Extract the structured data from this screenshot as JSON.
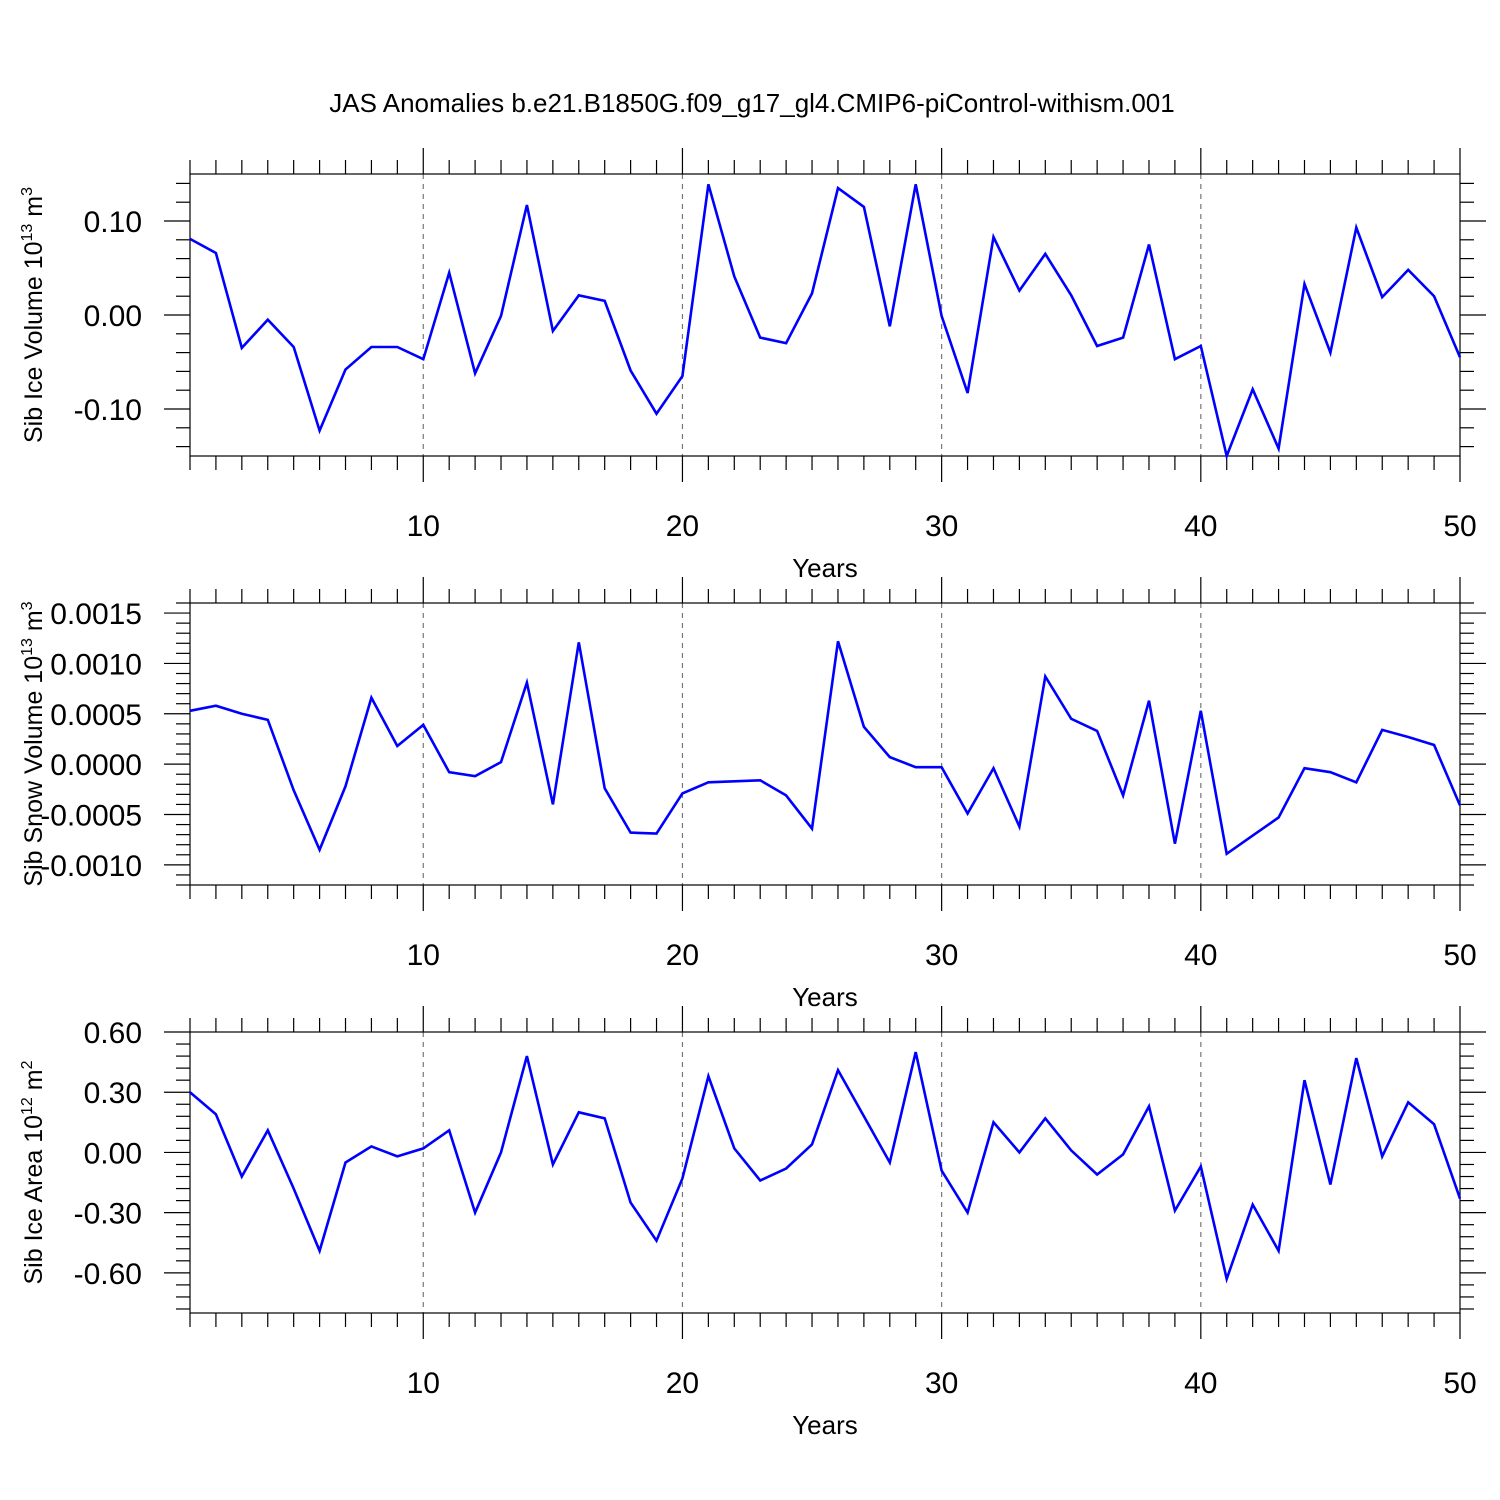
{
  "title": "JAS Anomalies b.e21.B1850G.f09_g17_gl4.CMIP6-piControl-withism.001",
  "colors": {
    "series": "#0000ff",
    "grid": "#777777",
    "frame": "#000000"
  },
  "chart_data": [
    {
      "type": "line",
      "ylabel": "Sib Ice Volume 10",
      "ylabel_sup": "13",
      "ylabel_unit": " m",
      "ylabel_unit_sup": "3",
      "xlabel": "Years",
      "xlim": [
        1,
        50
      ],
      "ylim": [
        -0.15,
        0.15
      ],
      "xticks": [
        10,
        20,
        30,
        40,
        50
      ],
      "xtick_labels": [
        "10",
        "20",
        "30",
        "40",
        "50"
      ],
      "yticks": [
        -0.1,
        0.0,
        0.1
      ],
      "ytick_labels": [
        "-0.10",
        "0.00",
        "0.10"
      ],
      "grid": "x-dashed",
      "x": [
        1,
        2,
        3,
        4,
        5,
        6,
        7,
        8,
        9,
        10,
        11,
        12,
        13,
        14,
        15,
        16,
        17,
        18,
        19,
        20,
        21,
        22,
        23,
        24,
        25,
        26,
        27,
        28,
        29,
        30,
        31,
        32,
        33,
        34,
        35,
        36,
        37,
        38,
        39,
        40,
        41,
        42,
        43,
        44,
        45,
        46,
        47,
        48,
        49,
        50
      ],
      "series": [
        {
          "values": [
            0.081,
            0.066,
            -0.035,
            -0.005,
            -0.034,
            -0.123,
            -0.058,
            -0.034,
            -0.034,
            -0.047,
            0.045,
            -0.062,
            -0.001,
            0.117,
            -0.017,
            0.021,
            0.015,
            -0.059,
            -0.105,
            -0.065,
            0.139,
            0.041,
            -0.024,
            -0.03,
            0.023,
            0.135,
            0.115,
            -0.012,
            0.139,
            -0.001,
            -0.083,
            0.083,
            0.026,
            0.065,
            0.021,
            -0.033,
            -0.024,
            0.075,
            -0.047,
            -0.033,
            -0.15,
            -0.079,
            -0.142,
            0.033,
            -0.04,
            0.093,
            0.019,
            0.048,
            0.02,
            -0.045
          ]
        }
      ]
    },
    {
      "type": "line",
      "ylabel": "Sib Snow Volume 10",
      "ylabel_sup": "13",
      "ylabel_unit": " m",
      "ylabel_unit_sup": "3",
      "xlabel": "Years",
      "xlim": [
        1,
        50
      ],
      "ylim": [
        -0.0012,
        0.0016
      ],
      "xticks": [
        10,
        20,
        30,
        40,
        50
      ],
      "xtick_labels": [
        "10",
        "20",
        "30",
        "40",
        "50"
      ],
      "yticks": [
        -0.001,
        -0.0005,
        0.0,
        0.0005,
        0.001,
        0.0015
      ],
      "ytick_labels": [
        "-0.0010",
        "-0.0005",
        "0.0000",
        "0.0005",
        "0.0010",
        "0.0015"
      ],
      "grid": "x-dashed",
      "x": [
        1,
        2,
        3,
        4,
        5,
        6,
        7,
        8,
        9,
        10,
        11,
        12,
        13,
        14,
        15,
        16,
        17,
        18,
        19,
        20,
        21,
        22,
        23,
        24,
        25,
        26,
        27,
        28,
        29,
        30,
        31,
        32,
        33,
        34,
        35,
        36,
        37,
        38,
        39,
        40,
        41,
        42,
        43,
        44,
        45,
        46,
        47,
        48,
        49,
        50
      ],
      "series": [
        {
          "values": [
            0.00053,
            0.00058,
            0.0005,
            0.00044,
            -0.00026,
            -0.00085,
            -0.00022,
            0.00066,
            0.00018,
            0.00039,
            -8e-05,
            -0.00012,
            2e-05,
            0.00081,
            -0.0004,
            0.00121,
            -0.00024,
            -0.00068,
            -0.00069,
            -0.00029,
            -0.00018,
            -0.00017,
            -0.00016,
            -0.00031,
            -0.00064,
            0.00122,
            0.00037,
            7e-05,
            -3e-05,
            -3e-05,
            -0.00049,
            -4e-05,
            -0.00062,
            0.00087,
            0.00045,
            0.00033,
            -0.00031,
            0.00063,
            -0.00079,
            0.00053,
            -0.00089,
            -0.00071,
            -0.00053,
            -4e-05,
            -8e-05,
            -0.00018,
            0.00034,
            0.00027,
            0.00019,
            -0.00041
          ]
        }
      ]
    },
    {
      "type": "line",
      "ylabel": "Sib Ice Area 10",
      "ylabel_sup": "12",
      "ylabel_unit": " m",
      "ylabel_unit_sup": "2",
      "xlabel": "Years",
      "xlim": [
        1,
        50
      ],
      "ylim": [
        -0.8,
        0.6
      ],
      "xticks": [
        10,
        20,
        30,
        40,
        50
      ],
      "xtick_labels": [
        "10",
        "20",
        "30",
        "40",
        "50"
      ],
      "yticks": [
        -0.6,
        -0.3,
        0.0,
        0.3,
        0.6
      ],
      "ytick_labels": [
        "-0.60",
        "-0.30",
        "0.00",
        "0.30",
        "0.60"
      ],
      "grid": "x-dashed",
      "x": [
        1,
        2,
        3,
        4,
        5,
        6,
        7,
        8,
        9,
        10,
        11,
        12,
        13,
        14,
        15,
        16,
        17,
        18,
        19,
        20,
        21,
        22,
        23,
        24,
        25,
        26,
        27,
        28,
        29,
        30,
        31,
        32,
        33,
        34,
        35,
        36,
        37,
        38,
        39,
        40,
        41,
        42,
        43,
        44,
        45,
        46,
        47,
        48,
        49,
        50
      ],
      "series": [
        {
          "values": [
            0.3,
            0.19,
            -0.12,
            0.11,
            -0.18,
            -0.49,
            -0.05,
            0.03,
            -0.02,
            0.02,
            0.11,
            -0.3,
            0.0,
            0.48,
            -0.06,
            0.2,
            0.17,
            -0.25,
            -0.44,
            -0.13,
            0.38,
            0.02,
            -0.14,
            -0.08,
            0.04,
            0.41,
            0.18,
            -0.05,
            0.5,
            -0.09,
            -0.3,
            0.15,
            0.0,
            0.17,
            0.01,
            -0.11,
            -0.01,
            0.23,
            -0.29,
            -0.07,
            -0.63,
            -0.26,
            -0.49,
            0.36,
            -0.16,
            0.47,
            -0.02,
            0.25,
            0.14,
            -0.23
          ]
        }
      ]
    }
  ]
}
